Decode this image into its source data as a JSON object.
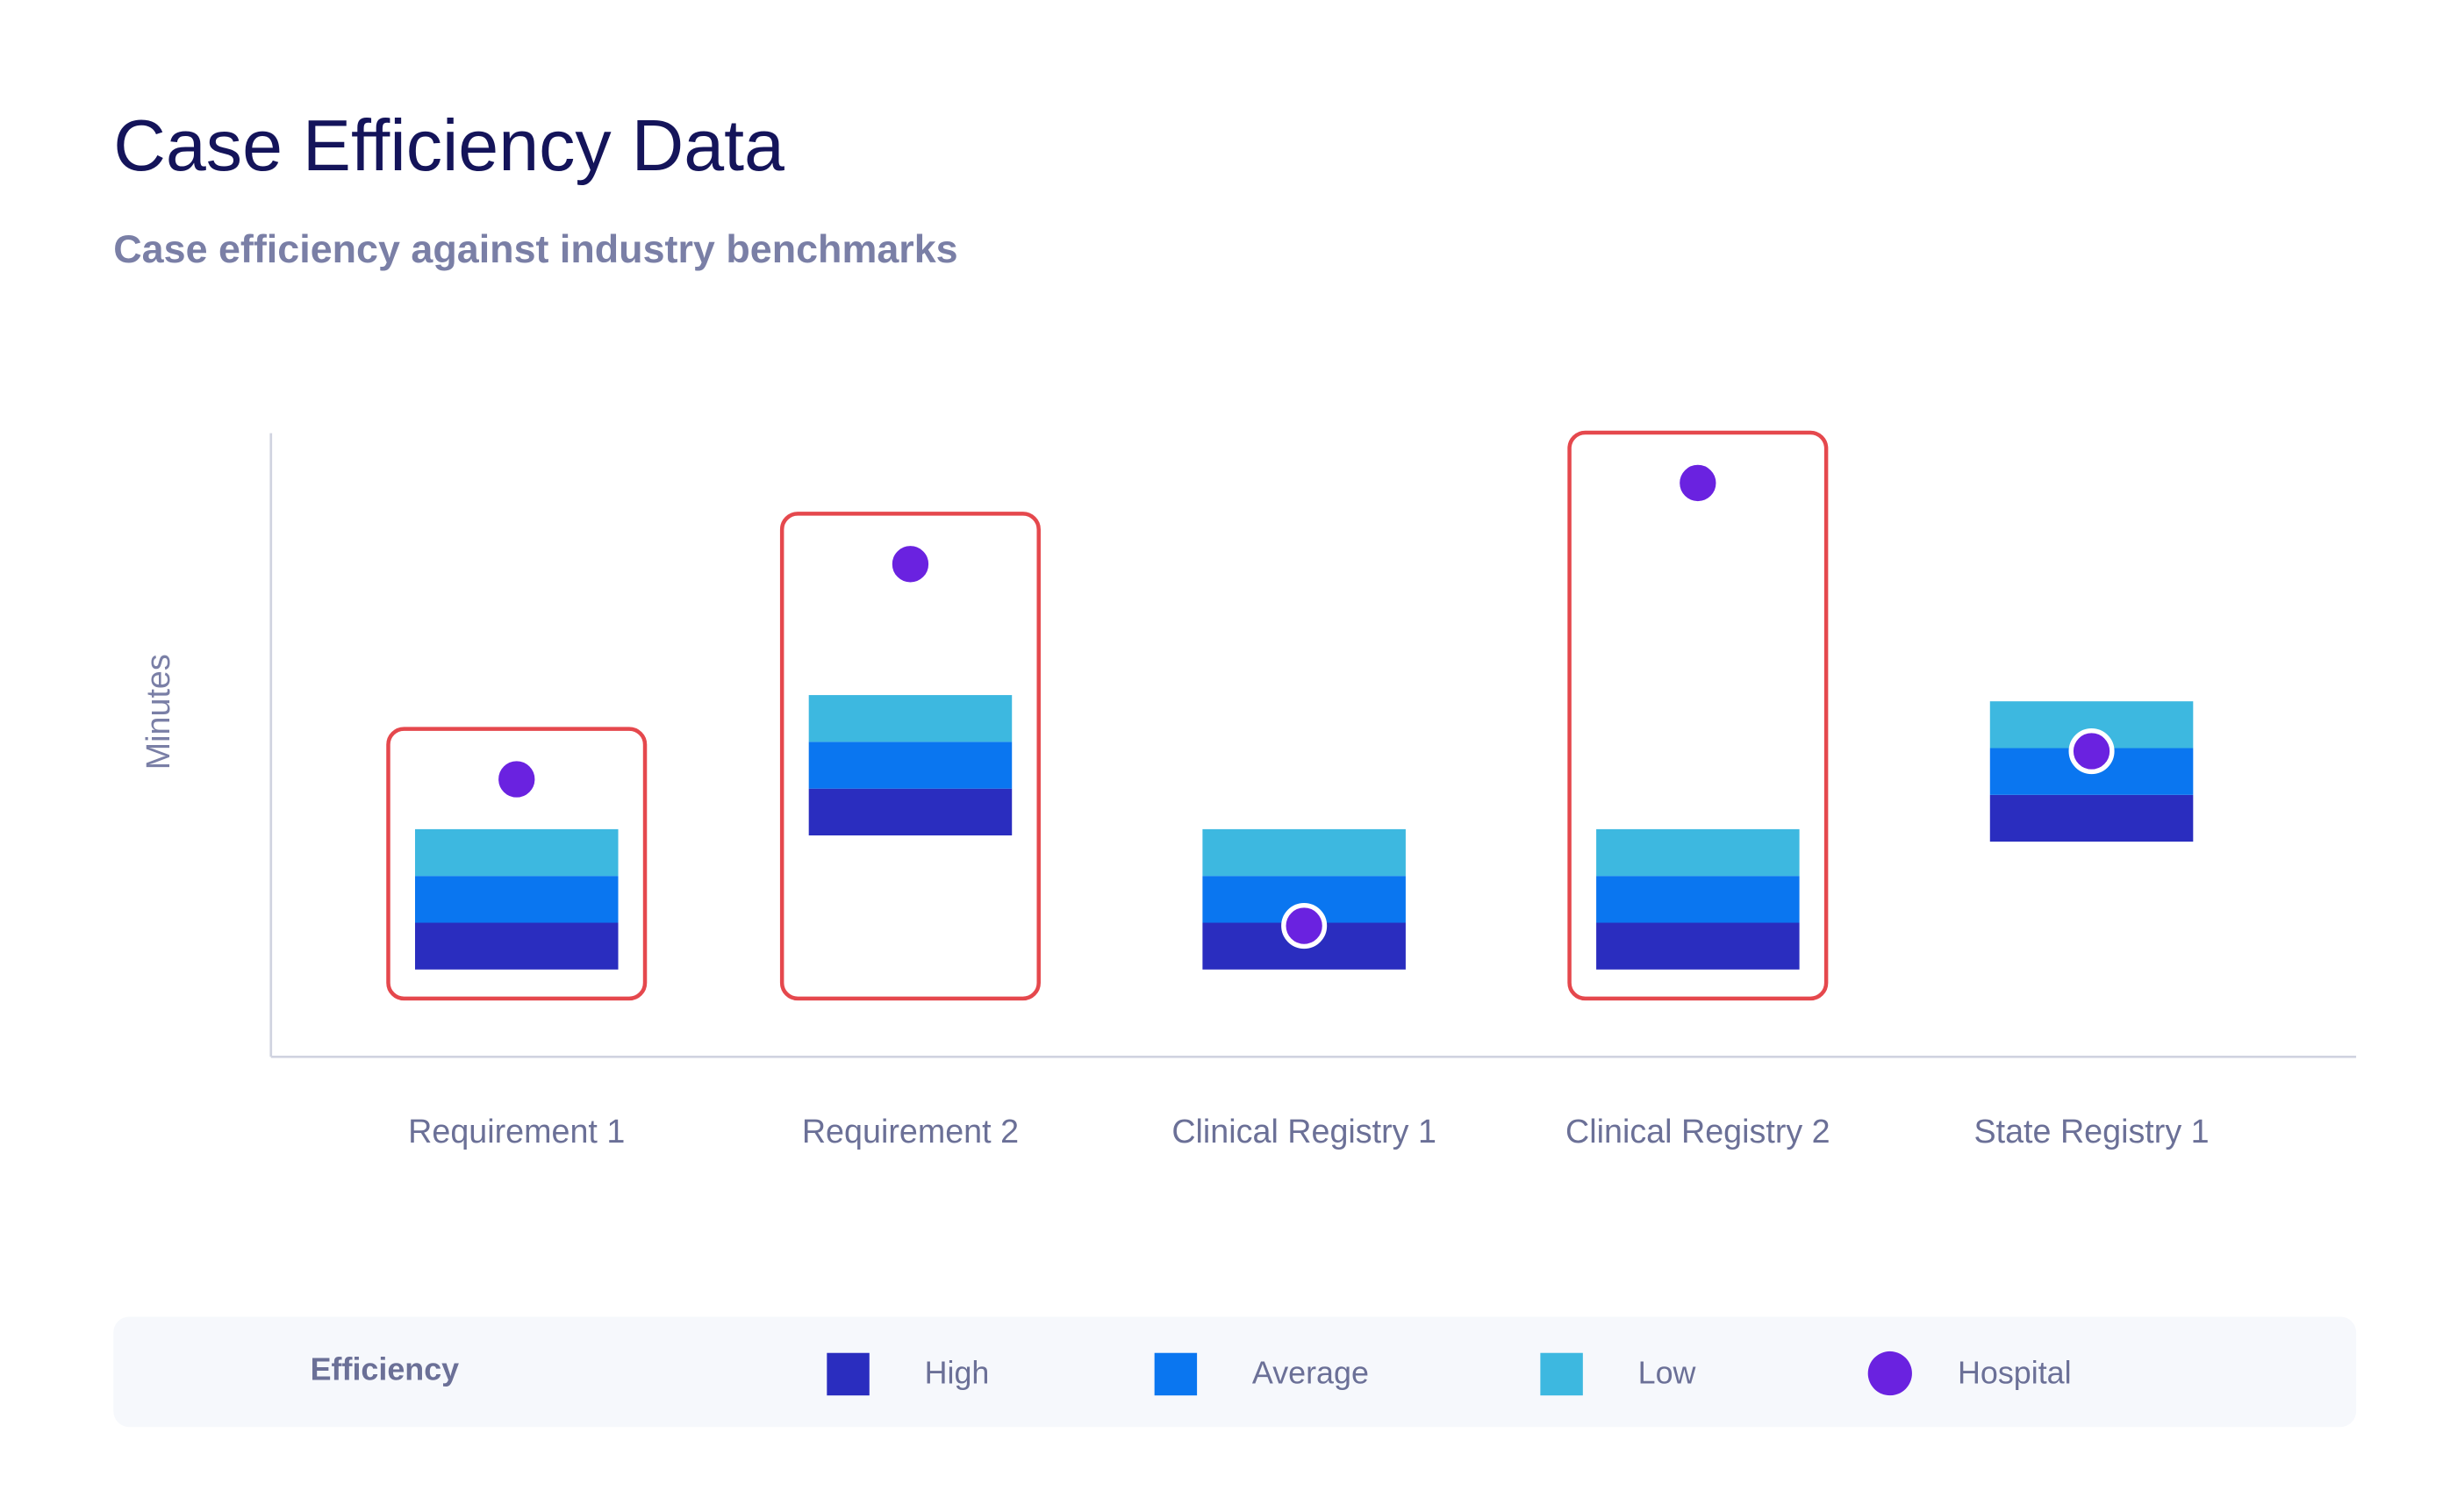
{
  "chart_data": {
    "type": "floating_bar",
    "title": "Case Efficiency Data",
    "subtitle": "Case efficiency against industry benchmarks",
    "ylabel": "Minutes",
    "categories": [
      "Requirement 1",
      "Requirement 2",
      "Clinical Registry 1",
      "Clinical Registry 2",
      "State Registry 1"
    ],
    "ylim": [
      0,
      100
    ],
    "series": [
      {
        "name": "High",
        "color": "#2a2dbf",
        "values": [
          [
            14,
            21.5
          ],
          [
            35.5,
            43
          ],
          [
            14,
            21.5
          ],
          [
            14,
            21.5
          ],
          [
            34.5,
            42
          ]
        ]
      },
      {
        "name": "Average",
        "color": "#0a76f0",
        "values": [
          [
            21.5,
            29
          ],
          [
            43,
            50.5
          ],
          [
            21.5,
            29
          ],
          [
            21.5,
            29
          ],
          [
            42,
            49.5
          ]
        ]
      },
      {
        "name": "Low",
        "color": "#3db8e0",
        "values": [
          [
            29,
            36.5
          ],
          [
            50.5,
            58
          ],
          [
            29,
            36.5
          ],
          [
            29,
            36.5
          ],
          [
            49.5,
            57
          ]
        ]
      }
    ],
    "marker_series": {
      "name": "Hospital",
      "color": "#6a22e0",
      "values": [
        44.5,
        79,
        21,
        92,
        49
      ]
    },
    "highlight": [
      true,
      true,
      false,
      true,
      false
    ],
    "highlight_color": "#e5484d",
    "legend_title": "Efficiency"
  }
}
